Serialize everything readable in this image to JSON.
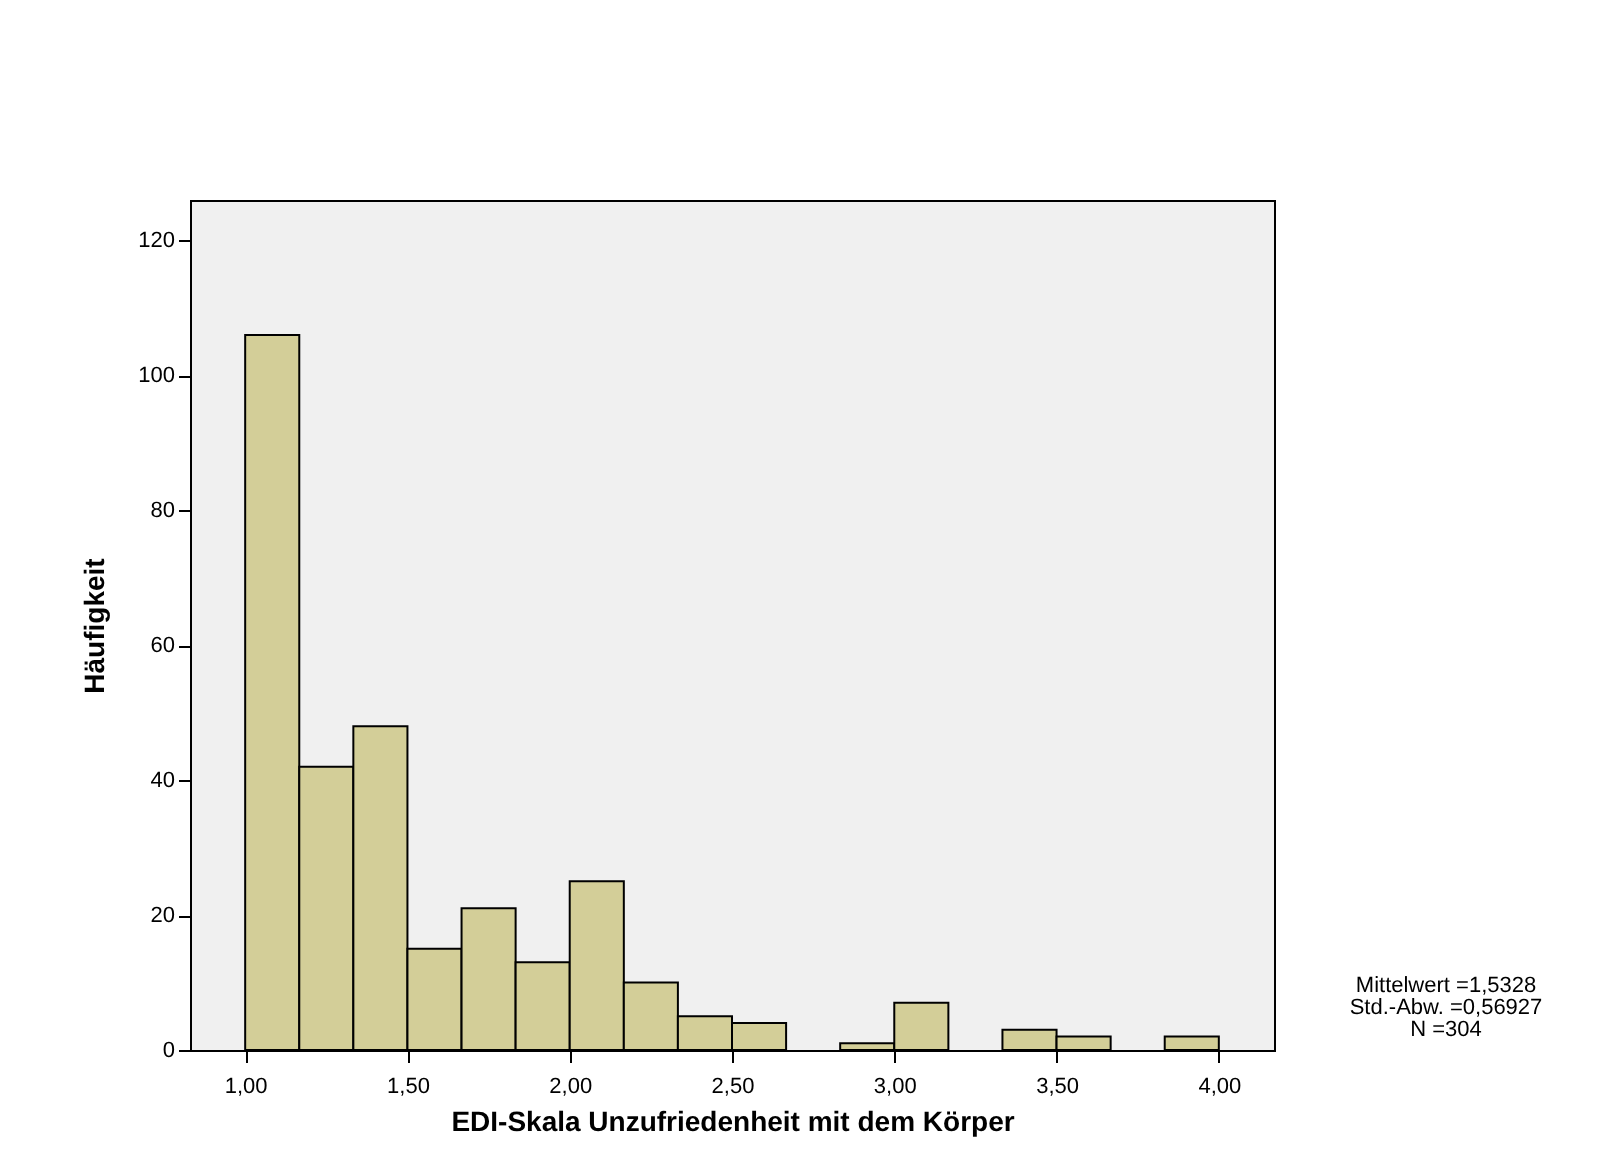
{
  "chart_data": {
    "type": "histogram",
    "xlabel": "EDI-Skala Unzufriedenheit mit dem Körper",
    "ylabel": "Häufigkeit",
    "bins": [
      1.0,
      1.1667,
      1.3333,
      1.5,
      1.6667,
      1.8333,
      2.0,
      2.1667,
      2.3333,
      2.5,
      2.6667,
      2.8333,
      3.0,
      3.1667,
      3.3333,
      3.5,
      3.6667,
      3.8333,
      4.0
    ],
    "values": [
      106,
      42,
      48,
      15,
      21,
      13,
      25,
      10,
      5,
      4,
      0,
      1,
      7,
      0,
      3,
      2,
      0,
      2
    ],
    "color": "#d3ce98",
    "xlim": [
      0.83,
      4.17
    ],
    "xticks": [
      {
        "value": 1.0,
        "label": "1,00"
      },
      {
        "value": 1.5,
        "label": "1,50"
      },
      {
        "value": 2.0,
        "label": "2,00"
      },
      {
        "value": 2.5,
        "label": "2,50"
      },
      {
        "value": 3.0,
        "label": "3,00"
      },
      {
        "value": 3.5,
        "label": "3,50"
      },
      {
        "value": 4.0,
        "label": "4,00"
      }
    ],
    "ylim": [
      0,
      126
    ],
    "yticks": [
      0,
      20,
      40,
      60,
      80,
      100,
      120
    ],
    "grid": false,
    "annotations": [
      "Mittelwert =1,5328",
      "Std.-Abw. =0,56927",
      "N =304"
    ]
  }
}
